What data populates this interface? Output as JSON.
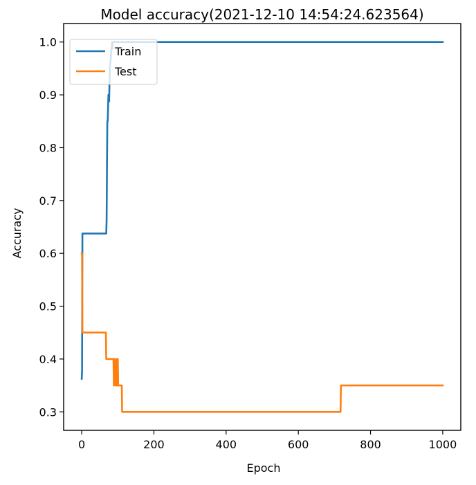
{
  "chart_data": {
    "type": "line",
    "title": "Model accuracy(2021-12-10 14:54:24.623564)",
    "xlabel": "Epoch",
    "ylabel": "Accuracy",
    "xlim": [
      -50,
      1050
    ],
    "ylim": [
      0.265,
      1.035
    ],
    "xticks": [
      0,
      200,
      400,
      600,
      800,
      1000
    ],
    "yticks": [
      0.3,
      0.4,
      0.5,
      0.6,
      0.7,
      0.8,
      0.9,
      1.0
    ],
    "xtick_labels": [
      "0",
      "200",
      "400",
      "600",
      "800",
      "1000"
    ],
    "ytick_labels": [
      "0.3",
      "0.4",
      "0.5",
      "0.6",
      "0.7",
      "0.8",
      "0.9",
      "1.0"
    ],
    "grid": false,
    "legend_position": "upper left",
    "series": [
      {
        "name": "Train",
        "color": "#1f77b4",
        "x": [
          0,
          1,
          2,
          3,
          65,
          68,
          69,
          70,
          71,
          72,
          74,
          75,
          76,
          77,
          78,
          79,
          80,
          81,
          82,
          83,
          84,
          85,
          86,
          88,
          1000
        ],
        "y": [
          0.3625,
          0.375,
          0.6375,
          0.6375,
          0.6375,
          0.6375,
          0.6625,
          0.7625,
          0.85,
          0.85,
          0.9,
          0.9,
          0.8875,
          0.925,
          0.95,
          0.9625,
          0.9625,
          0.975,
          0.9875,
          0.9875,
          1.0,
          0.9875,
          1.0,
          1.0,
          1.0
        ]
      },
      {
        "name": "Test",
        "color": "#ff7f0e",
        "x": [
          0,
          1,
          2,
          66,
          67,
          68,
          88,
          89,
          90,
          91,
          92,
          95,
          96,
          97,
          98,
          99,
          100,
          101,
          102,
          103,
          110,
          111,
          112,
          113,
          717,
          718,
          719,
          1000
        ],
        "y": [
          0.6,
          0.6,
          0.45,
          0.45,
          0.45,
          0.4,
          0.4,
          0.35,
          0.4,
          0.35,
          0.35,
          0.4,
          0.35,
          0.35,
          0.4,
          0.35,
          0.4,
          0.35,
          0.35,
          0.35,
          0.35,
          0.35,
          0.3,
          0.3,
          0.3,
          0.35,
          0.35,
          0.35
        ]
      }
    ]
  }
}
